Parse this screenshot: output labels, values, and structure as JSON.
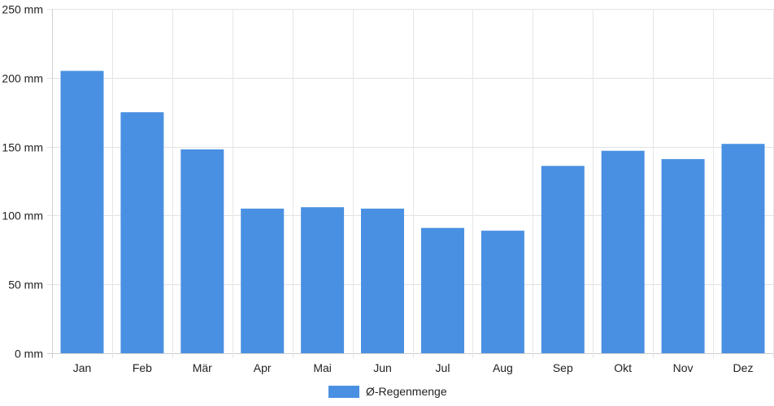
{
  "chart_data": {
    "type": "bar",
    "categories": [
      "Jan",
      "Feb",
      "Mär",
      "Apr",
      "Mai",
      "Jun",
      "Jul",
      "Aug",
      "Sep",
      "Okt",
      "Nov",
      "Dez"
    ],
    "series": [
      {
        "name": "Ø-Regenmenge",
        "values": [
          205,
          175,
          148,
          105,
          106,
          105,
          91,
          89,
          136,
          147,
          141,
          152
        ],
        "color": "#4a90e2"
      }
    ],
    "y_ticks": [
      0,
      50,
      100,
      150,
      200,
      250
    ],
    "y_unit": "mm",
    "ylim": [
      0,
      250
    ],
    "grid": true,
    "legend_position": "bottom"
  }
}
